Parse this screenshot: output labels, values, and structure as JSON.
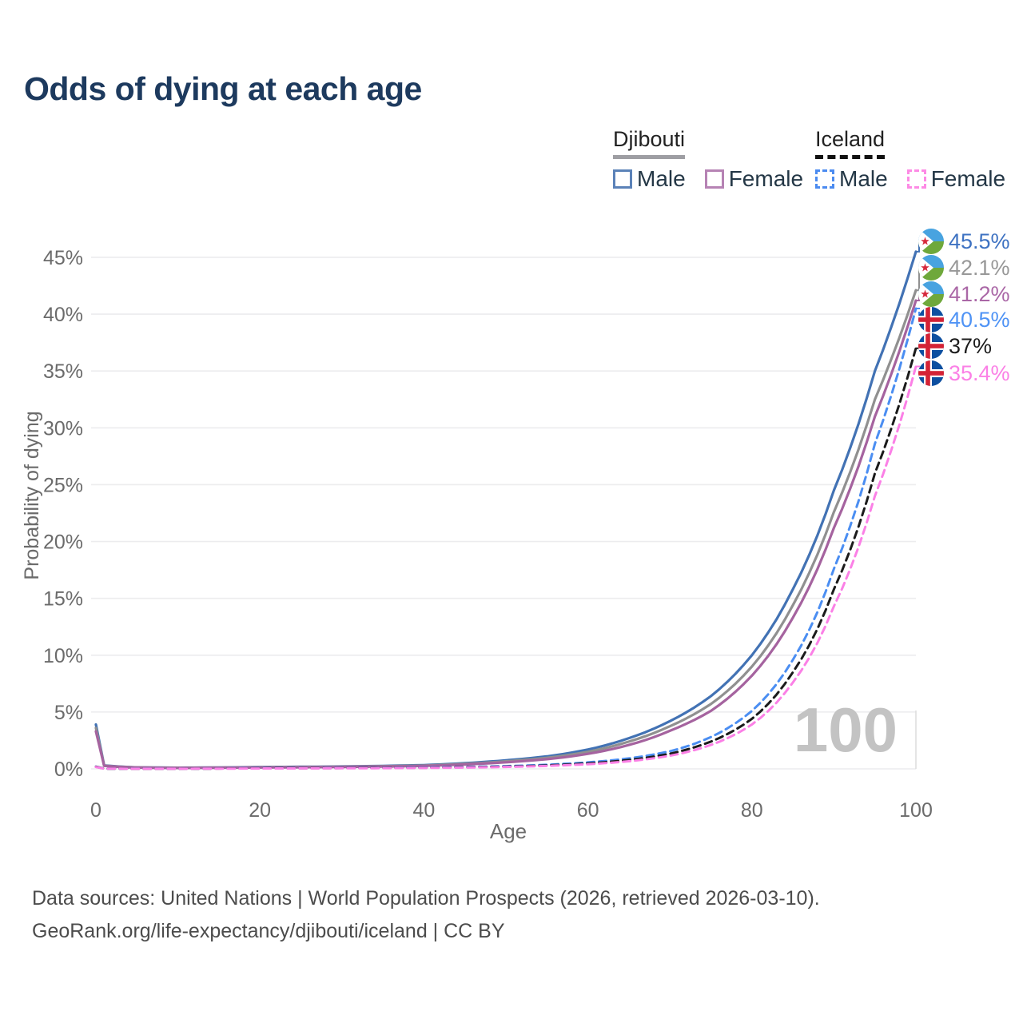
{
  "title": "Odds of dying at each age",
  "legend": {
    "groups": [
      {
        "name": "Djibouti",
        "line_style": "solid",
        "items": [
          {
            "label": "Male",
            "color": "#4272b4"
          },
          {
            "label": "Female",
            "color": "#a5639f"
          }
        ]
      },
      {
        "name": "Iceland",
        "line_style": "dashed",
        "items": [
          {
            "label": "Male",
            "color": "#4b8ef2"
          },
          {
            "label": "Female",
            "color": "#fb80e6"
          }
        ]
      }
    ]
  },
  "chart_data": {
    "type": "line",
    "title": "Odds of dying at each age",
    "xlabel": "Age",
    "ylabel": "Probability of dying",
    "xlim": [
      0,
      100
    ],
    "ylim": [
      0,
      47
    ],
    "x_tick_labels": [
      "0",
      "20",
      "40",
      "60",
      "80",
      "100"
    ],
    "x_tick_values": [
      0,
      20,
      40,
      60,
      80,
      100
    ],
    "y_tick_labels": [
      "0%",
      "5%",
      "10%",
      "15%",
      "20%",
      "25%",
      "30%",
      "35%",
      "40%",
      "45%"
    ],
    "y_tick_values": [
      0,
      5,
      10,
      15,
      20,
      25,
      30,
      35,
      40,
      45
    ],
    "grid": "horizontal",
    "legend_position": "top-right",
    "age_counter": "100",
    "series": [
      {
        "id": "djibouti-male",
        "country": "Djibouti",
        "group": "Male",
        "line_color": "#4272b4",
        "label_color": "#3e72c2",
        "dashed": false,
        "flag": "djibouti",
        "end_label": "45.5%",
        "end_value": 45.5,
        "points": [
          [
            0,
            3.9
          ],
          [
            1,
            0.3
          ],
          [
            5,
            0.13
          ],
          [
            10,
            0.1
          ],
          [
            15,
            0.12
          ],
          [
            20,
            0.16
          ],
          [
            25,
            0.18
          ],
          [
            30,
            0.21
          ],
          [
            35,
            0.26
          ],
          [
            40,
            0.33
          ],
          [
            45,
            0.5
          ],
          [
            50,
            0.75
          ],
          [
            55,
            1.1
          ],
          [
            60,
            1.7
          ],
          [
            65,
            2.7
          ],
          [
            70,
            4.2
          ],
          [
            75,
            6.4
          ],
          [
            80,
            10.0
          ],
          [
            85,
            15.8
          ],
          [
            90,
            24.5
          ],
          [
            95,
            35.0
          ],
          [
            100,
            45.5
          ]
        ]
      },
      {
        "id": "djibouti-all",
        "country": "Djibouti",
        "group": "All",
        "line_color": "#909090",
        "label_color": "#989898",
        "dashed": false,
        "flag": "djibouti",
        "end_label": "42.1%",
        "end_value": 42.1,
        "points": [
          [
            0,
            3.6
          ],
          [
            1,
            0.28
          ],
          [
            5,
            0.12
          ],
          [
            10,
            0.09
          ],
          [
            15,
            0.11
          ],
          [
            20,
            0.14
          ],
          [
            25,
            0.16
          ],
          [
            30,
            0.19
          ],
          [
            35,
            0.23
          ],
          [
            40,
            0.29
          ],
          [
            45,
            0.44
          ],
          [
            50,
            0.66
          ],
          [
            55,
            0.97
          ],
          [
            60,
            1.5
          ],
          [
            65,
            2.4
          ],
          [
            70,
            3.75
          ],
          [
            75,
            5.7
          ],
          [
            80,
            9.0
          ],
          [
            85,
            14.4
          ],
          [
            90,
            22.6
          ],
          [
            95,
            32.5
          ],
          [
            100,
            42.1
          ]
        ]
      },
      {
        "id": "djibouti-female",
        "country": "Djibouti",
        "group": "Female",
        "line_color": "#a5639f",
        "label_color": "#aa67a6",
        "dashed": false,
        "flag": "djibouti",
        "end_label": "41.2%",
        "end_value": 41.2,
        "points": [
          [
            0,
            3.3
          ],
          [
            1,
            0.26
          ],
          [
            5,
            0.11
          ],
          [
            10,
            0.08
          ],
          [
            15,
            0.1
          ],
          [
            20,
            0.12
          ],
          [
            25,
            0.14
          ],
          [
            30,
            0.17
          ],
          [
            35,
            0.2
          ],
          [
            40,
            0.26
          ],
          [
            45,
            0.39
          ],
          [
            50,
            0.58
          ],
          [
            55,
            0.85
          ],
          [
            60,
            1.32
          ],
          [
            65,
            2.1
          ],
          [
            70,
            3.35
          ],
          [
            75,
            5.1
          ],
          [
            80,
            8.2
          ],
          [
            85,
            13.3
          ],
          [
            90,
            21.2
          ],
          [
            95,
            31.0
          ],
          [
            100,
            41.2
          ]
        ]
      },
      {
        "id": "iceland-male",
        "country": "Iceland",
        "group": "Male",
        "line_color": "#4b8ef2",
        "label_color": "#4f93f5",
        "dashed": true,
        "flag": "iceland",
        "end_label": "40.5%",
        "end_value": 40.5,
        "points": [
          [
            0,
            0.2
          ],
          [
            1,
            0.02
          ],
          [
            5,
            0.012
          ],
          [
            10,
            0.01
          ],
          [
            15,
            0.04
          ],
          [
            20,
            0.06
          ],
          [
            25,
            0.07
          ],
          [
            30,
            0.09
          ],
          [
            35,
            0.1
          ],
          [
            40,
            0.13
          ],
          [
            45,
            0.17
          ],
          [
            50,
            0.24
          ],
          [
            55,
            0.36
          ],
          [
            60,
            0.57
          ],
          [
            65,
            0.92
          ],
          [
            70,
            1.55
          ],
          [
            75,
            2.8
          ],
          [
            80,
            5.1
          ],
          [
            85,
            9.6
          ],
          [
            90,
            17.6
          ],
          [
            95,
            28.6
          ],
          [
            100,
            40.5
          ]
        ]
      },
      {
        "id": "iceland-all",
        "country": "Iceland",
        "group": "All",
        "line_color": "#1b1b1b",
        "label_color": "#1c1c1c",
        "dashed": true,
        "flag": "iceland",
        "end_label": "37%",
        "end_value": 37.0,
        "points": [
          [
            0,
            0.18
          ],
          [
            1,
            0.018
          ],
          [
            5,
            0.01
          ],
          [
            10,
            0.009
          ],
          [
            15,
            0.03
          ],
          [
            20,
            0.045
          ],
          [
            25,
            0.055
          ],
          [
            30,
            0.07
          ],
          [
            35,
            0.08
          ],
          [
            40,
            0.1
          ],
          [
            45,
            0.14
          ],
          [
            50,
            0.2
          ],
          [
            55,
            0.3
          ],
          [
            60,
            0.48
          ],
          [
            65,
            0.78
          ],
          [
            70,
            1.33
          ],
          [
            75,
            2.4
          ],
          [
            80,
            4.4
          ],
          [
            85,
            8.5
          ],
          [
            90,
            15.8
          ],
          [
            95,
            26.0
          ],
          [
            100,
            37.0
          ]
        ]
      },
      {
        "id": "iceland-female",
        "country": "Iceland",
        "group": "Female",
        "line_color": "#fb80e6",
        "label_color": "#fb80e6",
        "dashed": true,
        "flag": "iceland",
        "end_label": "35.4%",
        "end_value": 35.4,
        "points": [
          [
            0,
            0.16
          ],
          [
            1,
            0.016
          ],
          [
            5,
            0.009
          ],
          [
            10,
            0.008
          ],
          [
            15,
            0.02
          ],
          [
            20,
            0.03
          ],
          [
            25,
            0.04
          ],
          [
            30,
            0.05
          ],
          [
            35,
            0.06
          ],
          [
            40,
            0.08
          ],
          [
            45,
            0.11
          ],
          [
            50,
            0.17
          ],
          [
            55,
            0.26
          ],
          [
            60,
            0.41
          ],
          [
            65,
            0.67
          ],
          [
            70,
            1.15
          ],
          [
            75,
            2.1
          ],
          [
            80,
            3.9
          ],
          [
            85,
            7.6
          ],
          [
            90,
            14.3
          ],
          [
            95,
            24.0
          ],
          [
            100,
            35.4
          ]
        ]
      }
    ]
  },
  "footer": {
    "line1": "Data sources: United Nations | World Population Prospects (2026, retrieved 2026-03-10).",
    "line2": "GeoRank.org/life-expectancy/djibouti/iceland | CC BY"
  }
}
